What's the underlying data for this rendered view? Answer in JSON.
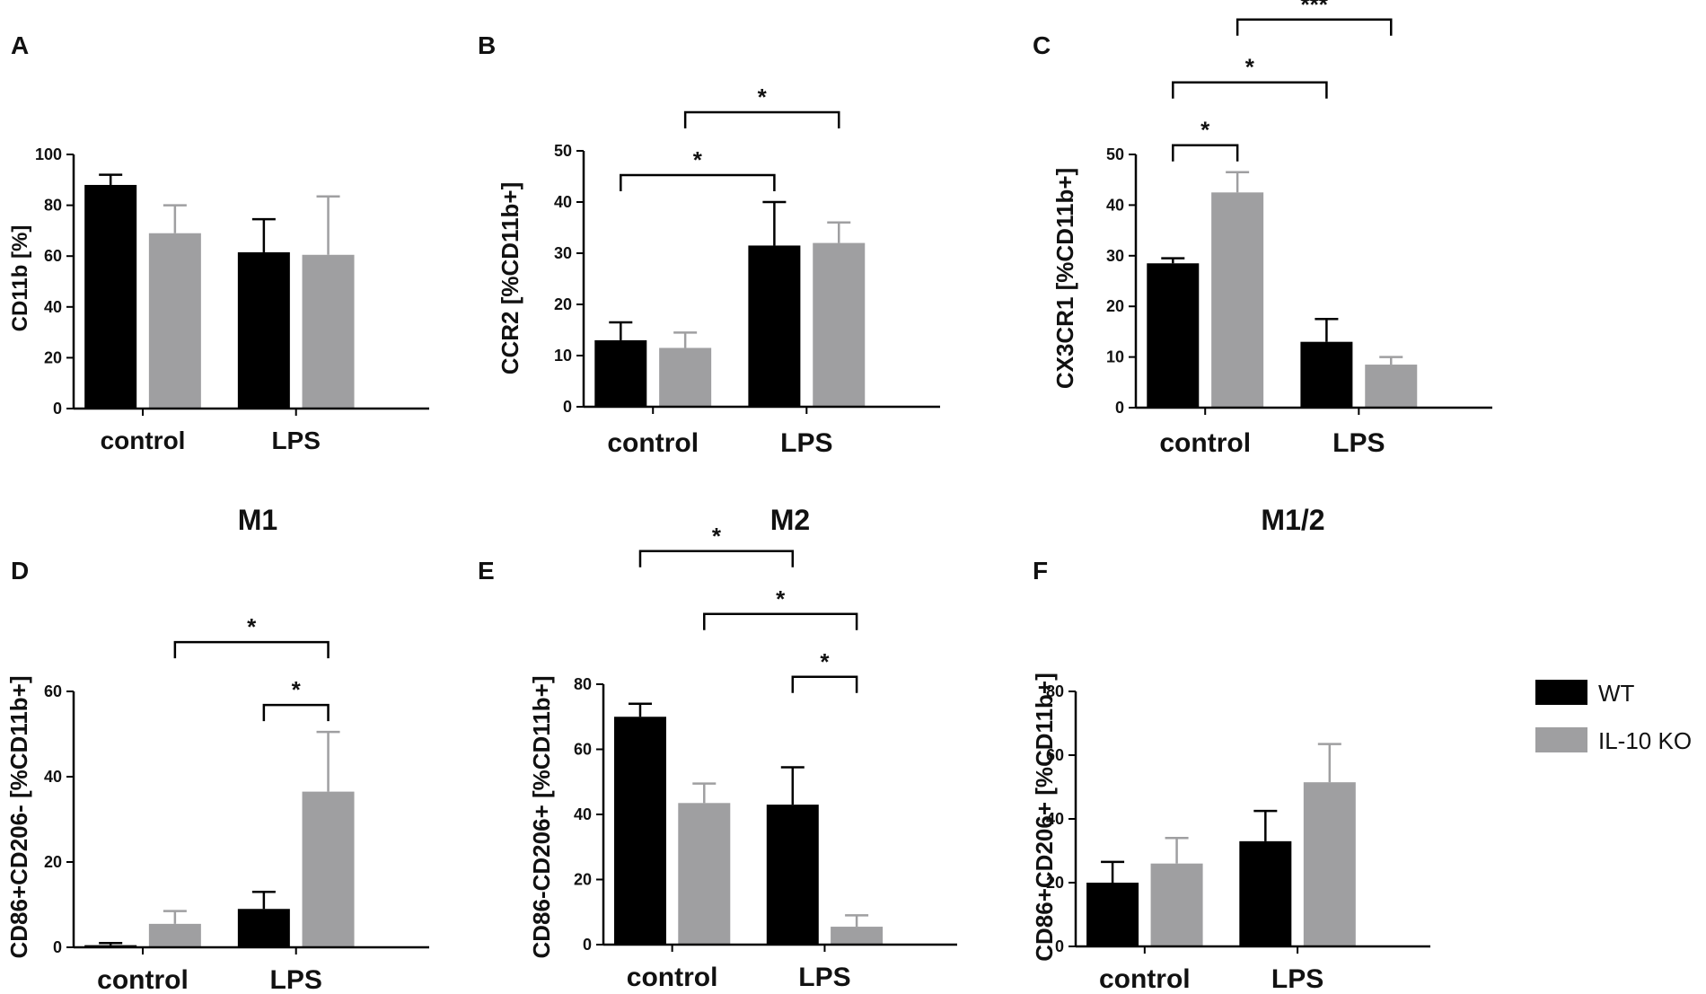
{
  "chart_data": [
    {
      "type": "bar",
      "panel": "A",
      "title": "",
      "ylabel": "CD11b [%]",
      "ylim": [
        0,
        100
      ],
      "yticks": [
        0,
        20,
        40,
        60,
        80,
        100
      ],
      "categories": [
        "control",
        "LPS"
      ],
      "series": [
        {
          "name": "WT",
          "values": [
            88,
            61.5
          ],
          "errors": [
            4,
            13
          ]
        },
        {
          "name": "IL-10 KO",
          "values": [
            69,
            60.5
          ],
          "errors": [
            11,
            23
          ]
        }
      ],
      "brackets": []
    },
    {
      "type": "bar",
      "panel": "B",
      "title": "",
      "ylabel": "CCR2 [%CD11b+]",
      "ylim": [
        0,
        50
      ],
      "yticks": [
        0,
        10,
        20,
        30,
        40,
        50
      ],
      "categories": [
        "control",
        "LPS"
      ],
      "series": [
        {
          "name": "WT",
          "values": [
            13,
            31.5
          ],
          "errors": [
            3.5,
            8.5
          ]
        },
        {
          "name": "IL-10 KO",
          "values": [
            11.5,
            32
          ],
          "errors": [
            3,
            4
          ]
        }
      ],
      "brackets": [
        {
          "from": "WT|control",
          "to": "WT|LPS",
          "label": "*",
          "level": 1
        },
        {
          "from": "IL-10 KO|control",
          "to": "IL-10 KO|LPS",
          "label": "*",
          "level": 2
        }
      ]
    },
    {
      "type": "bar",
      "panel": "C",
      "title": "",
      "ylabel": "CX3CR1 [%CD11b+]",
      "ylim": [
        0,
        50
      ],
      "yticks": [
        0,
        10,
        20,
        30,
        40,
        50
      ],
      "categories": [
        "control",
        "LPS"
      ],
      "series": [
        {
          "name": "WT",
          "values": [
            28.5,
            13
          ],
          "errors": [
            1,
            4.5
          ]
        },
        {
          "name": "IL-10 KO",
          "values": [
            42.5,
            8.5
          ],
          "errors": [
            4,
            1.5
          ]
        }
      ],
      "brackets": [
        {
          "from": "WT|control",
          "to": "IL-10 KO|control",
          "label": "*",
          "level": 1
        },
        {
          "from": "WT|control",
          "to": "WT|LPS",
          "label": "*",
          "level": 2
        },
        {
          "from": "IL-10 KO|control",
          "to": "IL-10 KO|LPS",
          "label": "***",
          "level": 3
        }
      ]
    },
    {
      "type": "bar",
      "panel": "D",
      "title": "M1",
      "ylabel": "CD86+CD206- [%CD11b+]",
      "ylim": [
        0,
        60
      ],
      "yticks": [
        0,
        20,
        40,
        60
      ],
      "categories": [
        "control",
        "LPS"
      ],
      "series": [
        {
          "name": "WT",
          "values": [
            0.5,
            9
          ],
          "errors": [
            0.5,
            4
          ]
        },
        {
          "name": "IL-10 KO",
          "values": [
            5.5,
            36.5
          ],
          "errors": [
            3,
            14
          ]
        }
      ],
      "brackets": [
        {
          "from": "WT|LPS",
          "to": "IL-10 KO|LPS",
          "label": "*",
          "level": 1
        },
        {
          "from": "IL-10 KO|control",
          "to": "IL-10 KO|LPS",
          "label": "*",
          "level": 2
        }
      ]
    },
    {
      "type": "bar",
      "panel": "E",
      "title": "M2",
      "ylabel": "CD86-CD206+ [%CD11b+]",
      "ylim": [
        0,
        80
      ],
      "yticks": [
        0,
        20,
        40,
        60,
        80
      ],
      "categories": [
        "control",
        "LPS"
      ],
      "series": [
        {
          "name": "WT",
          "values": [
            70,
            43
          ],
          "errors": [
            4,
            11.5
          ]
        },
        {
          "name": "IL-10 KO",
          "values": [
            43.5,
            5.5
          ],
          "errors": [
            6,
            3.5
          ]
        }
      ],
      "brackets": [
        {
          "from": "WT|LPS",
          "to": "IL-10 KO|LPS",
          "label": "*",
          "level": 1
        },
        {
          "from": "IL-10 KO|control",
          "to": "IL-10 KO|LPS",
          "label": "*",
          "level": 2
        },
        {
          "from": "WT|control",
          "to": "WT|LPS",
          "label": "*",
          "level": 3
        }
      ]
    },
    {
      "type": "bar",
      "panel": "F",
      "title": "M1/2",
      "ylabel": "CD86+CD206+ [%CD11b+]",
      "ylim": [
        0,
        80
      ],
      "yticks": [
        0,
        20,
        40,
        60,
        80
      ],
      "categories": [
        "control",
        "LPS"
      ],
      "series": [
        {
          "name": "WT",
          "values": [
            20,
            33
          ],
          "errors": [
            6.5,
            9.5
          ]
        },
        {
          "name": "IL-10 KO",
          "values": [
            26,
            51.5
          ],
          "errors": [
            8,
            12
          ]
        }
      ],
      "brackets": []
    }
  ],
  "legend": {
    "items": [
      {
        "label": "WT",
        "color": "#000000"
      },
      {
        "label": "IL-10 KO",
        "color": "#9f9fa1"
      }
    ]
  },
  "colors": {
    "WT": "#000000",
    "IL-10 KO": "#9f9fa1",
    "axis": "#000000"
  }
}
